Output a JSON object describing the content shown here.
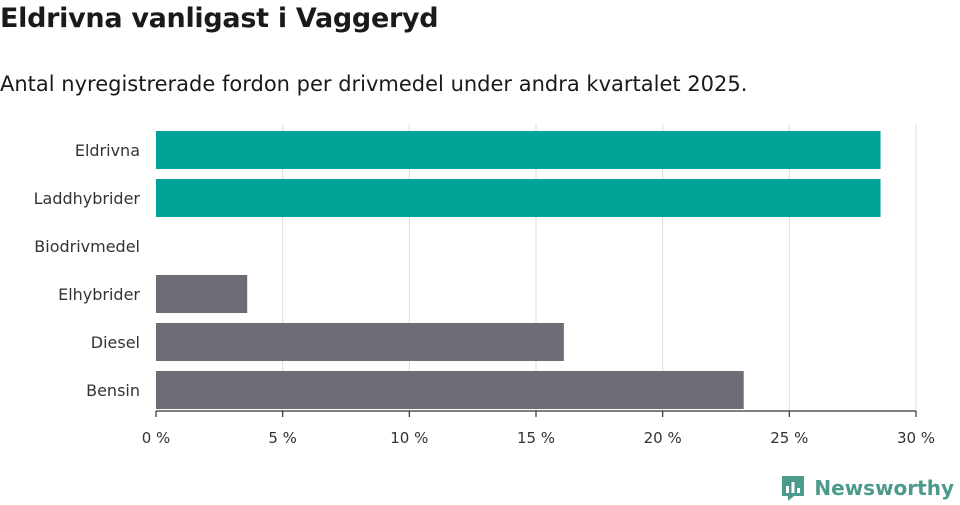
{
  "title": "Eldrivna vanligast i Vaggeryd",
  "subtitle": "Antal nyregistrerade fordon per drivmedel under andra kvartalet 2025.",
  "brand": {
    "name": "Newsworthy",
    "icon": "newsworthy-logo-icon",
    "color": "#4c9a8c"
  },
  "colors": {
    "highlight": "#00a398",
    "default": "#6e6d75",
    "grid": "#dddddd",
    "axis": "#333333"
  },
  "chart_data": {
    "type": "bar",
    "orientation": "horizontal",
    "categories": [
      "Eldrivna",
      "Laddhybrider",
      "Biodrivmedel",
      "Elhybrider",
      "Diesel",
      "Bensin"
    ],
    "values": [
      28.6,
      28.6,
      0,
      3.6,
      16.1,
      23.2
    ],
    "highlighted": [
      true,
      true,
      false,
      false,
      false,
      false
    ],
    "xlim": [
      0,
      30
    ],
    "xticks": [
      0,
      5,
      10,
      15,
      20,
      25,
      30
    ],
    "xtick_labels": [
      "0 %",
      "5 %",
      "10 %",
      "15 %",
      "20 %",
      "25 %",
      "30 %"
    ],
    "grid": true,
    "legend": "none"
  }
}
